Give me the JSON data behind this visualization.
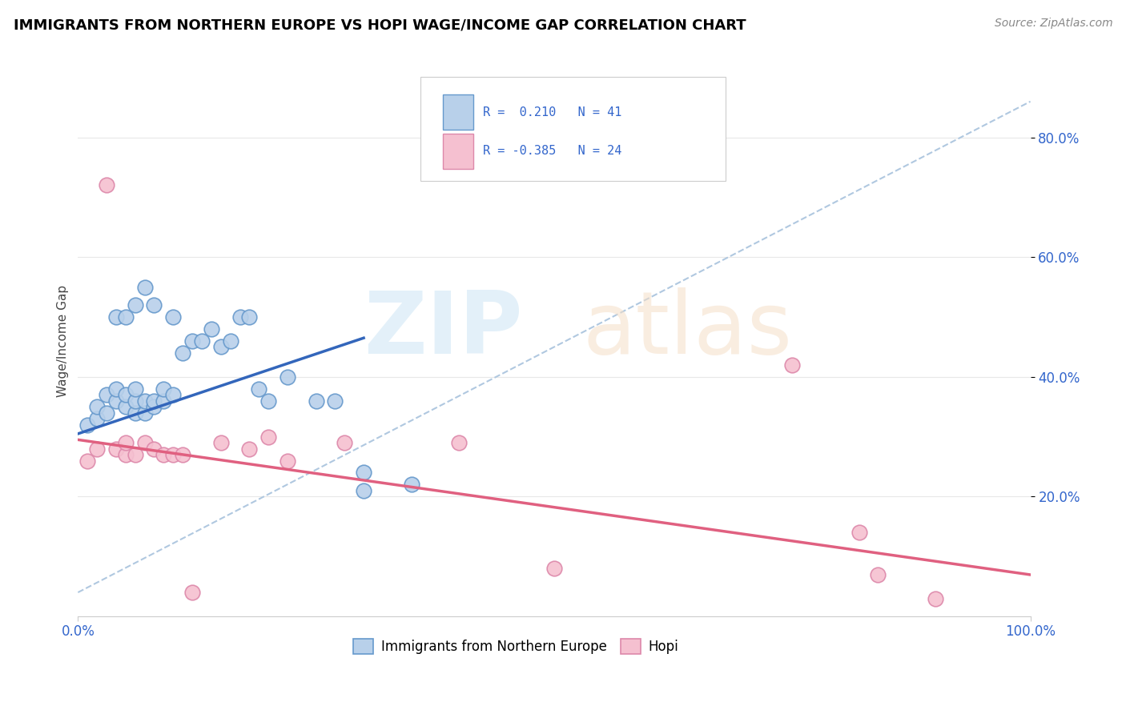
{
  "title": "IMMIGRANTS FROM NORTHERN EUROPE VS HOPI WAGE/INCOME GAP CORRELATION CHART",
  "source": "Source: ZipAtlas.com",
  "ylabel": "Wage/Income Gap",
  "xlim": [
    0,
    1.0
  ],
  "ylim": [
    0.0,
    0.92
  ],
  "ytick_labels": [
    "20.0%",
    "40.0%",
    "60.0%",
    "80.0%"
  ],
  "ytick_vals": [
    0.2,
    0.4,
    0.6,
    0.8
  ],
  "blue_scatter_x": [
    0.01,
    0.02,
    0.02,
    0.03,
    0.03,
    0.04,
    0.04,
    0.04,
    0.05,
    0.05,
    0.05,
    0.06,
    0.06,
    0.06,
    0.06,
    0.07,
    0.07,
    0.07,
    0.08,
    0.08,
    0.08,
    0.09,
    0.09,
    0.1,
    0.1,
    0.11,
    0.12,
    0.13,
    0.14,
    0.15,
    0.16,
    0.17,
    0.18,
    0.19,
    0.2,
    0.22,
    0.25,
    0.27,
    0.3,
    0.3,
    0.35
  ],
  "blue_scatter_y": [
    0.32,
    0.33,
    0.35,
    0.34,
    0.37,
    0.36,
    0.38,
    0.5,
    0.35,
    0.37,
    0.5,
    0.34,
    0.36,
    0.38,
    0.52,
    0.34,
    0.36,
    0.55,
    0.35,
    0.36,
    0.52,
    0.36,
    0.38,
    0.37,
    0.5,
    0.44,
    0.46,
    0.46,
    0.48,
    0.45,
    0.46,
    0.5,
    0.5,
    0.38,
    0.36,
    0.4,
    0.36,
    0.36,
    0.21,
    0.24,
    0.22
  ],
  "pink_scatter_x": [
    0.01,
    0.02,
    0.03,
    0.04,
    0.05,
    0.05,
    0.06,
    0.07,
    0.08,
    0.09,
    0.1,
    0.11,
    0.12,
    0.15,
    0.18,
    0.2,
    0.22,
    0.28,
    0.4,
    0.5,
    0.75,
    0.82,
    0.84,
    0.9
  ],
  "pink_scatter_y": [
    0.26,
    0.28,
    0.72,
    0.28,
    0.27,
    0.29,
    0.27,
    0.29,
    0.28,
    0.27,
    0.27,
    0.27,
    0.04,
    0.29,
    0.28,
    0.3,
    0.26,
    0.29,
    0.29,
    0.08,
    0.42,
    0.14,
    0.07,
    0.03
  ],
  "blue_line_x": [
    0.0,
    0.3
  ],
  "blue_line_y": [
    0.305,
    0.465
  ],
  "pink_line_x": [
    0.0,
    1.02
  ],
  "pink_line_y": [
    0.295,
    0.065
  ],
  "dashed_line_x": [
    0.0,
    1.0
  ],
  "dashed_line_y": [
    0.04,
    0.86
  ],
  "blue_fill": "#b8d0ea",
  "blue_edge": "#6699cc",
  "blue_line_color": "#3366bb",
  "pink_fill": "#f5c0d0",
  "pink_edge": "#dd88aa",
  "pink_line_color": "#e06080",
  "dashed_color": "#b0c8e0",
  "legend_text_color": "#3366cc",
  "bg": "#ffffff",
  "grid_color": "#e8e8e8"
}
